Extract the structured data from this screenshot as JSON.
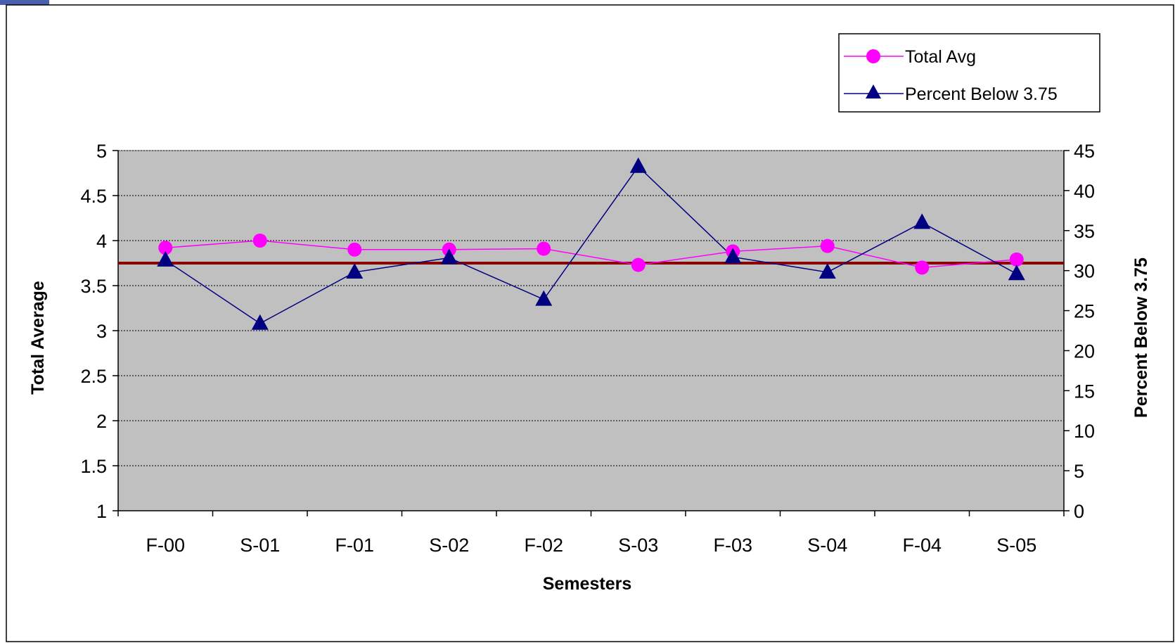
{
  "chart_data": {
    "type": "line",
    "title": "",
    "xlabel": "Semesters",
    "ylabel": "Total Average",
    "y2label": "Percent Below 3.75",
    "categories": [
      "F-00",
      "S-01",
      "F-01",
      "S-02",
      "F-02",
      "S-03",
      "F-03",
      "S-04",
      "F-04",
      "S-05"
    ],
    "ylim": [
      1,
      5
    ],
    "yticks": [
      "1",
      "1.5",
      "2",
      "2.5",
      "3",
      "3.5",
      "4",
      "4.5",
      "5"
    ],
    "y2lim": [
      0,
      45
    ],
    "y2ticks": [
      "0",
      "5",
      "10",
      "15",
      "20",
      "25",
      "30",
      "35",
      "40",
      "45"
    ],
    "series": [
      {
        "name": "Total Avg",
        "axis": "left",
        "marker": "circle",
        "color": "#ff00ff",
        "values": [
          3.92,
          4.0,
          3.9,
          3.9,
          3.91,
          3.73,
          3.88,
          3.94,
          3.7,
          3.79
        ]
      },
      {
        "name": "Percent Below 3.75",
        "axis": "right",
        "marker": "triangle",
        "color": "#000080",
        "values": [
          31.3,
          23.4,
          29.8,
          31.6,
          26.4,
          43.0,
          31.7,
          29.8,
          36.0,
          29.6
        ]
      }
    ],
    "reference_line": {
      "axis": "left",
      "value": 3.75,
      "color": "#8b0000"
    },
    "grid": true,
    "plot_background": "#c0c0c0",
    "legend_position": "top-right"
  }
}
